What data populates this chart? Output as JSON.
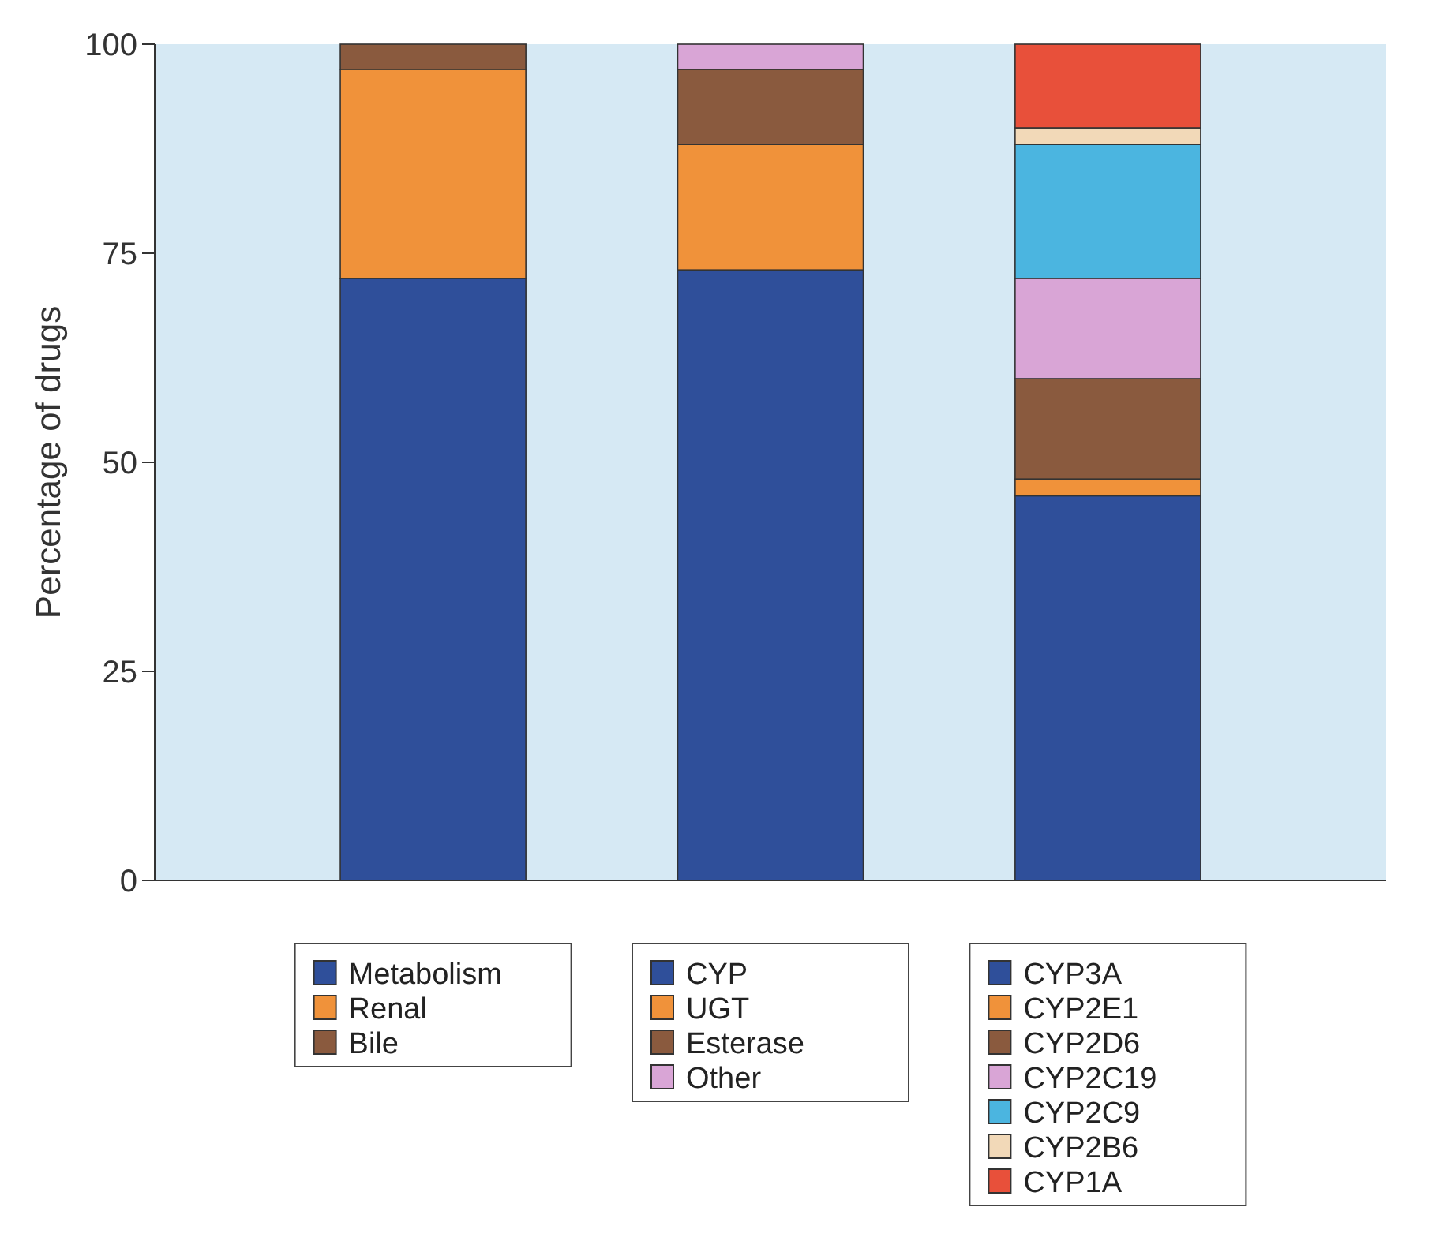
{
  "chart_data": {
    "type": "bar",
    "stacked": true,
    "ylabel": "Percentage of drugs",
    "categories": [
      null,
      null,
      null
    ],
    "ylim": [
      0,
      100
    ],
    "yticks": [
      0,
      25,
      50,
      75,
      100
    ],
    "legend": "bottom",
    "series": [
      {
        "name": "Metabolism",
        "color": "#2f4f9a",
        "values": [
          72,
          null,
          null
        ]
      },
      {
        "name": "Renal",
        "color": "#f0923a",
        "values": [
          25,
          null,
          null
        ]
      },
      {
        "name": "Bile",
        "color": "#8a5a3e",
        "values": [
          3,
          null,
          null
        ]
      },
      {
        "name": "CYP",
        "color": "#2f4f9a",
        "values": [
          null,
          73,
          null
        ]
      },
      {
        "name": "UGT",
        "color": "#f0923a",
        "values": [
          null,
          15,
          null
        ]
      },
      {
        "name": "Esterase",
        "color": "#8a5a3e",
        "values": [
          null,
          9,
          null
        ]
      },
      {
        "name": "Other",
        "color": "#d9a5d6",
        "values": [
          null,
          3,
          null
        ]
      },
      {
        "name": "CYP3A",
        "color": "#2f4f9a",
        "values": [
          null,
          null,
          46
        ]
      },
      {
        "name": "CYP2E1",
        "color": "#f0923a",
        "values": [
          null,
          null,
          2
        ]
      },
      {
        "name": "CYP2D6",
        "color": "#8a5a3e",
        "values": [
          null,
          null,
          12
        ]
      },
      {
        "name": "CYP2C19",
        "color": "#d9a5d6",
        "values": [
          null,
          null,
          12
        ]
      },
      {
        "name": "CYP2C9",
        "color": "#4bb5e0",
        "values": [
          null,
          null,
          16
        ]
      },
      {
        "name": "CYP2B6",
        "color": "#f2d9b8",
        "values": [
          null,
          null,
          2
        ]
      },
      {
        "name": "CYP1A",
        "color": "#e8503a",
        "values": [
          null,
          null,
          10
        ]
      }
    ]
  }
}
